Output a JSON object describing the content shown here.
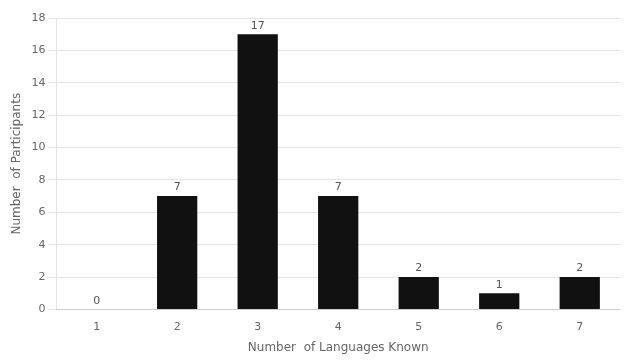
{
  "chart_data": {
    "type": "bar",
    "x": [
      1,
      2,
      3,
      4,
      5,
      6,
      7
    ],
    "values": [
      0,
      7,
      17,
      7,
      2,
      1,
      2
    ],
    "color": "#111111",
    "xlabel": "Number  of Languages Known",
    "ylabel": "Number  of Participants",
    "xlim": [
      0.5,
      7.5
    ],
    "xticks": [
      1,
      2,
      3,
      4,
      5,
      6,
      7
    ],
    "ylim": [
      0,
      18
    ],
    "yticks": [
      0,
      2,
      4,
      6,
      8,
      10,
      12,
      14,
      16,
      18
    ],
    "grid": true,
    "data_labels": true
  }
}
